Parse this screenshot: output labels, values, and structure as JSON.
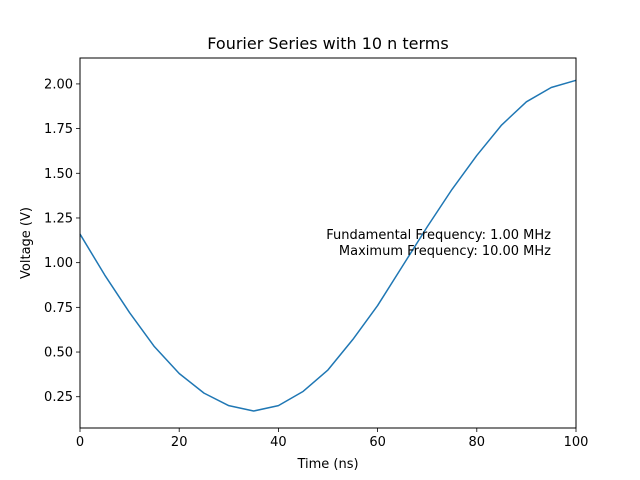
{
  "chart_data": {
    "type": "line",
    "title": "Fourier Series with 10 n terms",
    "xlabel": "Time (ns)",
    "ylabel": "Voltage (V)",
    "xlim": [
      0,
      100
    ],
    "ylim": [
      0.075,
      2.145
    ],
    "xticks": [
      0,
      20,
      40,
      60,
      80,
      100
    ],
    "xtick_labels": [
      "0",
      "20",
      "40",
      "60",
      "80",
      "100"
    ],
    "yticks": [
      0.25,
      0.5,
      0.75,
      1.0,
      1.25,
      1.5,
      1.75,
      2.0
    ],
    "ytick_labels": [
      "0.25",
      "0.50",
      "0.75",
      "1.00",
      "1.25",
      "1.50",
      "1.75",
      "2.00"
    ],
    "grid": false,
    "legend": "none",
    "series": [
      {
        "color": "#1f77b4",
        "x": [
          0,
          5,
          10,
          15,
          20,
          25,
          30,
          35,
          40,
          45,
          50,
          55,
          60,
          65,
          70,
          75,
          80,
          85,
          90,
          95,
          100
        ],
        "y": [
          1.16,
          0.93,
          0.72,
          0.53,
          0.38,
          0.27,
          0.2,
          0.17,
          0.2,
          0.28,
          0.4,
          0.57,
          0.76,
          0.98,
          1.2,
          1.41,
          1.6,
          1.77,
          1.9,
          1.98,
          2.02
        ]
      }
    ],
    "annotations": [
      "Fundamental Frequency: 1.00 MHz",
      "Maximum Frequency: 10.00 MHz"
    ]
  }
}
